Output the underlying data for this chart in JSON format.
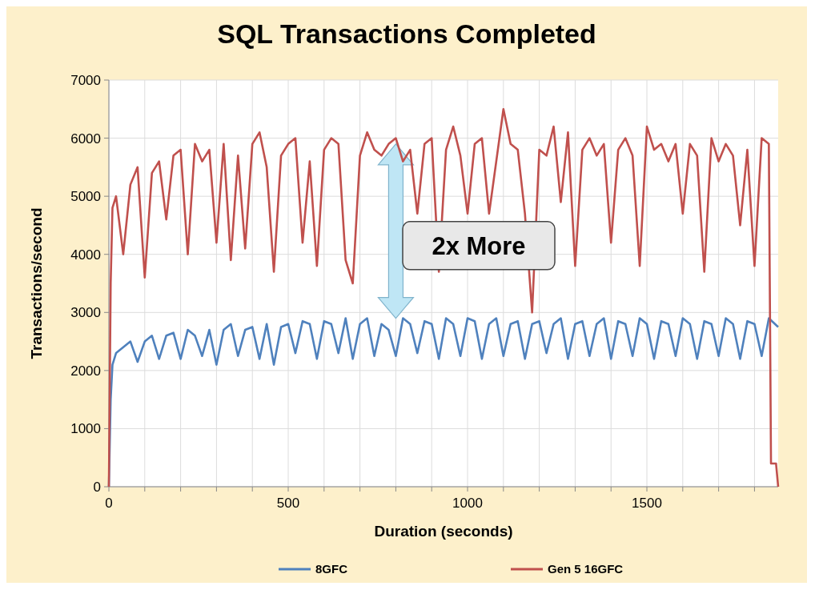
{
  "chart_data": {
    "type": "line",
    "title": "SQL Transactions Completed",
    "xlabel": "Duration (seconds)",
    "ylabel": "Transactions/second",
    "annotations": [
      "2x More"
    ],
    "xlim": [
      0,
      1866
    ],
    "xticks": [
      0,
      {
        "value": 100,
        "label": null
      },
      {
        "value": 200,
        "label": null
      },
      {
        "value": 300,
        "label": null
      },
      {
        "value": 400,
        "label": null
      },
      500,
      {
        "value": 600,
        "label": null
      },
      {
        "value": 700,
        "label": null
      },
      {
        "value": 800,
        "label": null
      },
      {
        "value": 900,
        "label": null
      },
      1000,
      {
        "value": 1100,
        "label": null
      },
      {
        "value": 1200,
        "label": null
      },
      {
        "value": 1300,
        "label": null
      },
      {
        "value": 1400,
        "label": null
      },
      1500,
      {
        "value": 1600,
        "label": null
      },
      {
        "value": 1700,
        "label": null
      },
      {
        "value": 1800,
        "label": null
      }
    ],
    "ylim": [
      0,
      7000
    ],
    "yticks": [
      0,
      1000,
      2000,
      3000,
      4000,
      5000,
      6000,
      7000
    ],
    "grid": true,
    "legend": "bottom",
    "line_style": "solid",
    "marker": "none",
    "series": [
      {
        "name": "8GFC",
        "color": "#4f81bd",
        "x": [
          0,
          5,
          10,
          20,
          40,
          60,
          80,
          100,
          120,
          140,
          160,
          180,
          200,
          220,
          240,
          260,
          280,
          300,
          320,
          340,
          360,
          380,
          400,
          420,
          440,
          460,
          480,
          500,
          520,
          540,
          560,
          580,
          600,
          620,
          640,
          660,
          680,
          700,
          720,
          740,
          760,
          780,
          800,
          820,
          840,
          860,
          880,
          900,
          920,
          940,
          960,
          980,
          1000,
          1020,
          1040,
          1060,
          1080,
          1100,
          1120,
          1140,
          1160,
          1180,
          1200,
          1220,
          1240,
          1260,
          1280,
          1300,
          1320,
          1340,
          1360,
          1380,
          1400,
          1420,
          1440,
          1460,
          1480,
          1500,
          1520,
          1540,
          1560,
          1580,
          1600,
          1620,
          1640,
          1660,
          1680,
          1700,
          1720,
          1740,
          1760,
          1780,
          1800,
          1820,
          1840,
          1866
        ],
        "values": [
          0,
          1500,
          2100,
          2300,
          2400,
          2500,
          2150,
          2500,
          2600,
          2200,
          2600,
          2650,
          2200,
          2700,
          2600,
          2250,
          2700,
          2100,
          2700,
          2800,
          2250,
          2700,
          2750,
          2200,
          2800,
          2100,
          2750,
          2800,
          2300,
          2850,
          2800,
          2200,
          2850,
          2800,
          2300,
          2900,
          2200,
          2800,
          2900,
          2250,
          2800,
          2700,
          2250,
          2900,
          2800,
          2300,
          2850,
          2800,
          2200,
          2900,
          2800,
          2250,
          2900,
          2850,
          2200,
          2800,
          2900,
          2250,
          2800,
          2850,
          2200,
          2800,
          2850,
          2300,
          2800,
          2900,
          2200,
          2800,
          2850,
          2250,
          2800,
          2900,
          2200,
          2850,
          2800,
          2250,
          2900,
          2800,
          2200,
          2850,
          2800,
          2250,
          2900,
          2800,
          2200,
          2850,
          2800,
          2250,
          2900,
          2800,
          2200,
          2850,
          2800,
          2250,
          2900,
          2750
        ]
      },
      {
        "name": "Gen 5 16GFC",
        "color": "#c0504d",
        "x": [
          0,
          5,
          10,
          20,
          40,
          60,
          80,
          100,
          120,
          140,
          160,
          180,
          200,
          220,
          240,
          260,
          280,
          300,
          320,
          340,
          360,
          380,
          400,
          420,
          440,
          460,
          480,
          500,
          520,
          540,
          560,
          580,
          600,
          620,
          640,
          660,
          680,
          700,
          720,
          740,
          760,
          780,
          800,
          820,
          840,
          860,
          880,
          900,
          920,
          940,
          960,
          980,
          1000,
          1020,
          1040,
          1060,
          1080,
          1100,
          1120,
          1140,
          1160,
          1180,
          1200,
          1220,
          1240,
          1260,
          1280,
          1300,
          1320,
          1340,
          1360,
          1380,
          1400,
          1420,
          1440,
          1460,
          1480,
          1500,
          1520,
          1540,
          1560,
          1580,
          1600,
          1620,
          1640,
          1660,
          1680,
          1700,
          1720,
          1740,
          1760,
          1780,
          1800,
          1820,
          1840,
          1846,
          1860,
          1866
        ],
        "values": [
          0,
          3500,
          4800,
          5000,
          4000,
          5200,
          5500,
          3600,
          5400,
          5600,
          4600,
          5700,
          5800,
          4000,
          5900,
          5600,
          5800,
          4200,
          5900,
          3900,
          5700,
          4100,
          5900,
          6100,
          5500,
          3700,
          5700,
          5900,
          6000,
          4200,
          5600,
          3800,
          5800,
          6000,
          5900,
          3900,
          3500,
          5700,
          6100,
          5800,
          5700,
          5900,
          6000,
          5600,
          5800,
          4700,
          5900,
          6000,
          3700,
          5800,
          6200,
          5700,
          4700,
          5900,
          6000,
          4700,
          5600,
          6500,
          5900,
          5800,
          4700,
          3000,
          5800,
          5700,
          6200,
          4900,
          6100,
          3800,
          5800,
          6000,
          5700,
          5900,
          4200,
          5800,
          6000,
          5700,
          3800,
          6200,
          5800,
          5900,
          5600,
          5900,
          4700,
          5900,
          5700,
          3700,
          6000,
          5600,
          5900,
          5700,
          4500,
          5800,
          3800,
          6000,
          5900,
          400,
          400,
          0
        ]
      }
    ]
  }
}
